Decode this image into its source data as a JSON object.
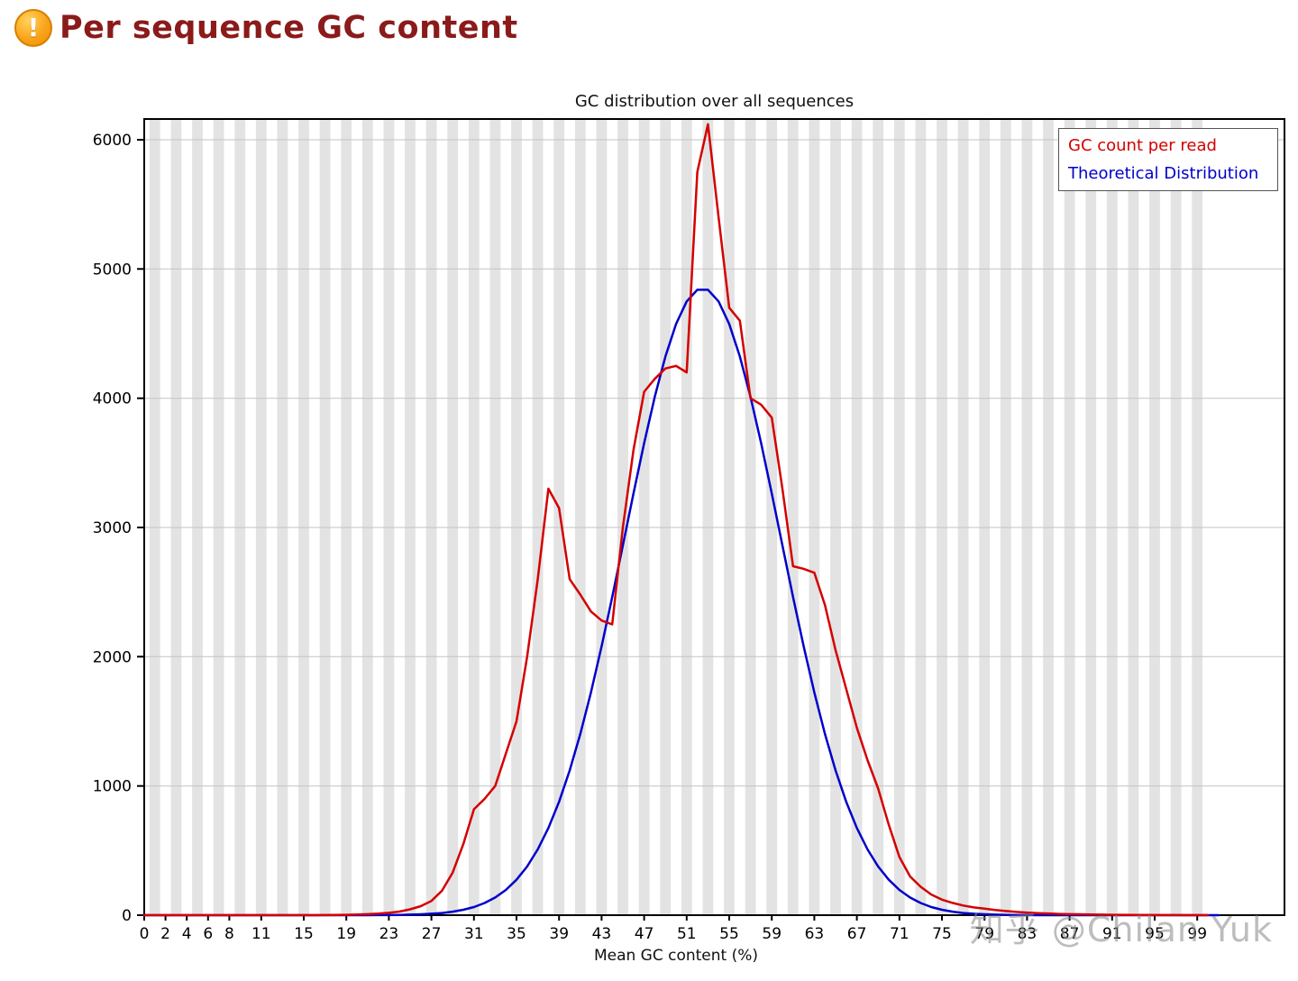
{
  "header": {
    "title": "Per sequence GC content",
    "icon_glyph": "!",
    "title_color": "#8b1a1a",
    "status": "warning"
  },
  "watermark": "知乎 @Chilan Yuk",
  "chart_data": {
    "type": "line",
    "title": "GC distribution over all sequences",
    "xlabel": "Mean GC content (%)",
    "ylabel": "",
    "xlim": [
      0,
      100
    ],
    "ylim": [
      0,
      6000
    ],
    "xticks": [
      0,
      2,
      4,
      6,
      8,
      11,
      15,
      19,
      23,
      27,
      31,
      35,
      39,
      43,
      47,
      51,
      55,
      59,
      63,
      67,
      71,
      75,
      79,
      83,
      87,
      91,
      95,
      99
    ],
    "yticks": [
      0,
      1000,
      2000,
      3000,
      4000,
      5000,
      6000
    ],
    "grid": true,
    "background_stripes": true,
    "legend_position": "top-right",
    "colors": {
      "gc_count": "#d40000",
      "theoretical": "#0000cc",
      "stripe": "#e3e3e3",
      "gridline": "#c3c3c3"
    },
    "series": [
      {
        "name": "GC count per read",
        "color": "#d40000",
        "values": [
          0,
          0,
          0,
          0,
          0,
          0,
          0,
          0,
          0,
          0,
          0,
          0,
          0,
          0,
          0,
          0,
          0,
          1,
          2,
          3,
          5,
          8,
          12,
          18,
          28,
          45,
          70,
          110,
          190,
          330,
          550,
          820,
          900,
          1000,
          1250,
          1500,
          2000,
          2600,
          3300,
          3150,
          2600,
          2480,
          2350,
          2280,
          2250,
          3000,
          3600,
          4050,
          4150,
          4230,
          4250,
          4200,
          5750,
          6120,
          5400,
          4700,
          4600,
          4000,
          3950,
          3850,
          3300,
          2700,
          2680,
          2650,
          2400,
          2050,
          1750,
          1450,
          1200,
          980,
          700,
          450,
          300,
          220,
          160,
          120,
          95,
          75,
          60,
          50,
          40,
          32,
          25,
          20,
          16,
          13,
          10,
          8,
          7,
          5,
          4,
          3,
          3,
          2,
          2,
          1,
          1,
          1,
          0,
          0,
          0
        ]
      },
      {
        "name": "Theoretical Distribution",
        "color": "#0000cc",
        "values": [
          0,
          0,
          0,
          0,
          0,
          0,
          0,
          0,
          0,
          0,
          0,
          0,
          0,
          0,
          0,
          0,
          0,
          0,
          0,
          0,
          0,
          0,
          1,
          1,
          2,
          4,
          7,
          11,
          17,
          27,
          42,
          63,
          94,
          137,
          195,
          274,
          377,
          509,
          675,
          877,
          1120,
          1402,
          1724,
          2080,
          2462,
          2861,
          3263,
          3652,
          4011,
          4323,
          4574,
          4749,
          4839,
          4839,
          4749,
          4574,
          4323,
          4011,
          3652,
          3263,
          2861,
          2462,
          2080,
          1724,
          1402,
          1120,
          877,
          675,
          509,
          377,
          274,
          195,
          137,
          94,
          63,
          42,
          27,
          17,
          11,
          7,
          4,
          2,
          1,
          1,
          0,
          0,
          0,
          0,
          0,
          0,
          0,
          0,
          0,
          0,
          0,
          0,
          0,
          0,
          0,
          0,
          0,
          0
        ]
      }
    ]
  }
}
